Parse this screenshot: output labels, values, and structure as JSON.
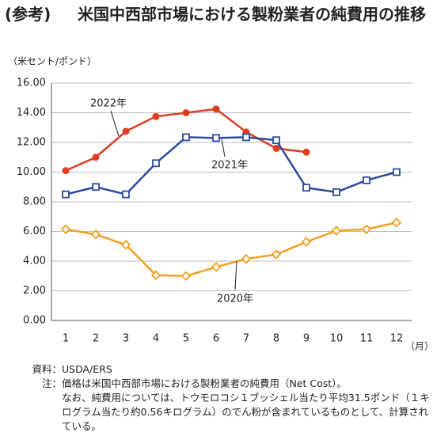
{
  "title_tag": "(参考)",
  "title": "米国中西部市場における製粉業者の純費用の推移",
  "chart_data": {
    "type": "line",
    "y_unit": "（米セント/ポンド）",
    "x_unit": "（月）",
    "categories": [
      "1",
      "2",
      "3",
      "4",
      "5",
      "6",
      "7",
      "8",
      "9",
      "10",
      "11",
      "12"
    ],
    "ylim": [
      0,
      16
    ],
    "yticks": [
      {
        "value": 0,
        "label": "0.00"
      },
      {
        "value": 2,
        "label": "2.00"
      },
      {
        "value": 4,
        "label": "4.00"
      },
      {
        "value": 6,
        "label": "6.00"
      },
      {
        "value": 8,
        "label": "8.00"
      },
      {
        "value": 10,
        "label": "10.00"
      },
      {
        "value": 12,
        "label": "12.00"
      },
      {
        "value": 14,
        "label": "14.00"
      },
      {
        "value": 16,
        "label": "16.00"
      }
    ],
    "grid": true,
    "series": [
      {
        "name": "2022年",
        "color": "#e03c1f",
        "marker": "circle",
        "values": [
          10.1,
          11.0,
          12.75,
          13.75,
          14.0,
          14.25,
          12.7,
          11.6,
          11.35,
          null,
          null,
          null
        ]
      },
      {
        "name": "2021年",
        "color": "#2a4c9b",
        "marker": "square",
        "values": [
          8.5,
          9.0,
          8.5,
          10.6,
          12.35,
          12.3,
          12.35,
          12.15,
          8.95,
          8.65,
          9.45,
          10.0
        ]
      },
      {
        "name": "2020年",
        "color": "#f0a020",
        "marker": "diamond",
        "values": [
          6.15,
          5.8,
          5.1,
          3.05,
          3.0,
          3.6,
          4.15,
          4.45,
          5.3,
          6.05,
          6.15,
          6.6
        ]
      }
    ]
  },
  "source_label": "資料：",
  "source": "USDA/ERS",
  "note_label": "注：",
  "notes": [
    "価格は米国中西部市場における製粉業者の純費用（Net Cost）。",
    "なお、純費用については、トウモロコシ１ブッシェル当たり平均31.5ポンド（１キログラム当たり約0.56キログラム）のでん粉が含まれているものとして、計算されている。"
  ]
}
